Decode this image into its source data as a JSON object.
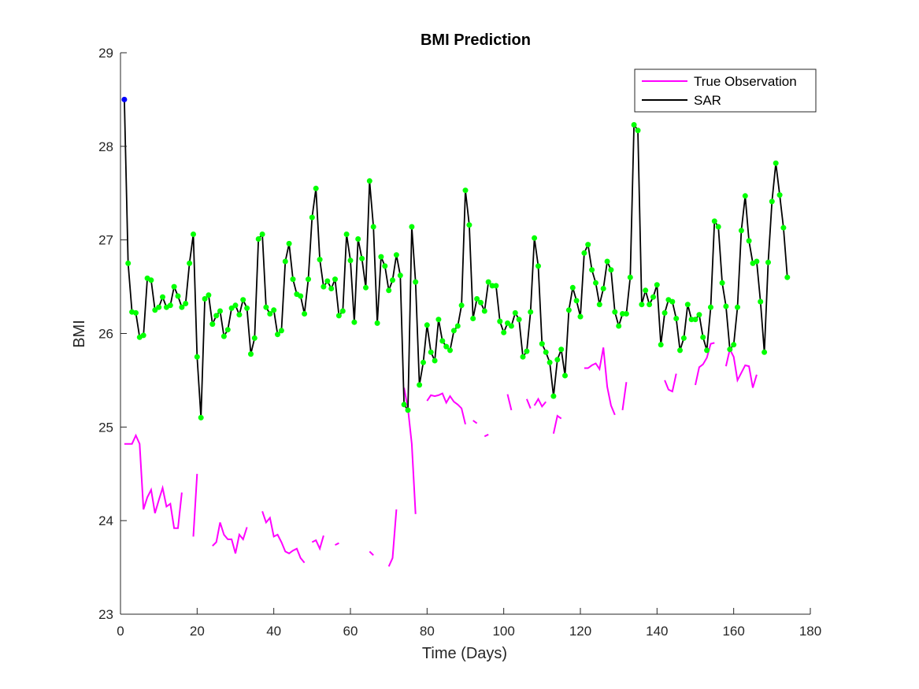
{
  "chart_data": {
    "type": "line",
    "title": "BMI Prediction",
    "xlabel": "Time (Days)",
    "ylabel": "BMI",
    "xlim": [
      0,
      180
    ],
    "ylim": [
      23,
      29
    ],
    "xticks": [
      "0",
      "20",
      "40",
      "60",
      "80",
      "100",
      "120",
      "140",
      "160",
      "180"
    ],
    "yticks": [
      "23",
      "24",
      "25",
      "26",
      "27",
      "28",
      "29"
    ],
    "legend_position": "top-right",
    "grid": false,
    "colors": {
      "true_observation": "#ff00ff",
      "sar": "#000000",
      "sar_markers": "#00ff00",
      "first_marker": "#0000ff"
    },
    "series": [
      {
        "name": "True Observation",
        "segments": [
          [
            [
              1,
              24.82
            ],
            [
              2,
              24.82
            ],
            [
              3,
              24.82
            ],
            [
              4,
              24.91
            ],
            [
              5,
              24.82
            ],
            [
              6,
              24.12
            ],
            [
              7,
              24.25
            ],
            [
              8,
              24.33
            ],
            [
              9,
              24.08
            ],
            [
              10,
              24.22
            ],
            [
              11,
              24.35
            ],
            [
              12,
              24.15
            ],
            [
              13,
              24.18
            ],
            [
              14,
              23.92
            ],
            [
              15,
              23.92
            ],
            [
              16,
              24.3
            ]
          ],
          [
            [
              19,
              23.83
            ],
            [
              20,
              24.5
            ]
          ],
          [
            [
              24,
              23.73
            ],
            [
              25,
              23.77
            ],
            [
              26,
              23.98
            ],
            [
              27,
              23.85
            ],
            [
              28,
              23.8
            ],
            [
              29,
              23.8
            ],
            [
              30,
              23.65
            ],
            [
              31,
              23.85
            ],
            [
              32,
              23.8
            ],
            [
              33,
              23.93
            ]
          ],
          [
            [
              37,
              24.1
            ],
            [
              38,
              23.98
            ],
            [
              39,
              24.03
            ],
            [
              40,
              23.83
            ],
            [
              41,
              23.85
            ],
            [
              42,
              23.77
            ],
            [
              43,
              23.67
            ],
            [
              44,
              23.65
            ],
            [
              45,
              23.68
            ],
            [
              46,
              23.7
            ],
            [
              47,
              23.6
            ],
            [
              48,
              23.55
            ]
          ],
          [
            [
              50,
              23.77
            ],
            [
              51,
              23.79
            ],
            [
              52,
              23.7
            ],
            [
              53,
              23.84
            ]
          ],
          [
            [
              56,
              23.74
            ],
            [
              57,
              23.76
            ]
          ],
          [
            [
              65,
              23.67
            ],
            [
              66,
              23.63
            ]
          ],
          [
            [
              70,
              23.51
            ],
            [
              71,
              23.6
            ],
            [
              72,
              24.12
            ]
          ],
          [
            [
              74,
              25.42
            ],
            [
              75,
              25.2
            ],
            [
              76,
              24.82
            ],
            [
              77,
              24.07
            ]
          ],
          [
            [
              80,
              25.28
            ],
            [
              81,
              25.34
            ],
            [
              82,
              25.33
            ],
            [
              83,
              25.34
            ],
            [
              84,
              25.36
            ],
            [
              85,
              25.26
            ],
            [
              86,
              25.33
            ],
            [
              87,
              25.27
            ],
            [
              88,
              25.24
            ],
            [
              89,
              25.2
            ],
            [
              90,
              25.03
            ]
          ],
          [
            [
              92,
              25.07
            ],
            [
              93,
              25.04
            ]
          ],
          [
            [
              95,
              24.9
            ],
            [
              96,
              24.92
            ]
          ],
          [
            [
              101,
              25.35
            ],
            [
              102,
              25.18
            ]
          ],
          [
            [
              106,
              25.3
            ],
            [
              107,
              25.2
            ]
          ],
          [
            [
              108,
              25.23
            ],
            [
              109,
              25.3
            ],
            [
              110,
              25.22
            ],
            [
              111,
              25.27
            ]
          ],
          [
            [
              113,
              24.93
            ],
            [
              114,
              25.12
            ],
            [
              115,
              25.09
            ]
          ],
          [
            [
              121,
              25.63
            ],
            [
              122,
              25.63
            ],
            [
              123,
              25.66
            ],
            [
              124,
              25.68
            ],
            [
              125,
              25.62
            ],
            [
              126,
              25.85
            ],
            [
              127,
              25.43
            ],
            [
              128,
              25.23
            ],
            [
              129,
              25.13
            ]
          ],
          [
            [
              131,
              25.18
            ],
            [
              132,
              25.48
            ]
          ],
          [
            [
              142,
              25.5
            ],
            [
              143,
              25.4
            ],
            [
              144,
              25.38
            ],
            [
              145,
              25.57
            ]
          ],
          [
            [
              150,
              25.45
            ],
            [
              151,
              25.64
            ],
            [
              152,
              25.67
            ],
            [
              153,
              25.74
            ],
            [
              154,
              25.89
            ],
            [
              155,
              25.9
            ]
          ],
          [
            [
              158,
              25.65
            ],
            [
              159,
              25.83
            ],
            [
              160,
              25.75
            ],
            [
              161,
              25.5
            ],
            [
              162,
              25.58
            ],
            [
              163,
              25.66
            ],
            [
              164,
              25.65
            ],
            [
              165,
              25.42
            ],
            [
              166,
              25.56
            ]
          ]
        ]
      },
      {
        "name": "SAR",
        "x": [
          1,
          2,
          3,
          4,
          5,
          6,
          7,
          8,
          9,
          10,
          11,
          12,
          13,
          14,
          15,
          16,
          17,
          18,
          19,
          20,
          21,
          22,
          23,
          24,
          25,
          26,
          27,
          28,
          29,
          30,
          31,
          32,
          33,
          34,
          35,
          36,
          37,
          38,
          39,
          40,
          41,
          42,
          43,
          44,
          45,
          46,
          47,
          48,
          49,
          50,
          51,
          52,
          53,
          54,
          55,
          56,
          57,
          58,
          59,
          60,
          61,
          62,
          63,
          64,
          65,
          66,
          67,
          68,
          69,
          70,
          71,
          72,
          73,
          74,
          75,
          76,
          77,
          78,
          79,
          80,
          81,
          82,
          83,
          84,
          85,
          86,
          87,
          88,
          89,
          90,
          91,
          92,
          93,
          94,
          95,
          96,
          97,
          98,
          99,
          100,
          101,
          102,
          103,
          104,
          105,
          106,
          107,
          108,
          109,
          110,
          111,
          112,
          113,
          114,
          115,
          116,
          117,
          118,
          119,
          120,
          121,
          122,
          123,
          124,
          125,
          126,
          127,
          128,
          129,
          130,
          131,
          132,
          133,
          134,
          135,
          136,
          137,
          138,
          139,
          140,
          141,
          142,
          143,
          144,
          145,
          146,
          147,
          148,
          149,
          150,
          151,
          152,
          153,
          154,
          155,
          156,
          157,
          158,
          159,
          160,
          161,
          162,
          163,
          164,
          165,
          166,
          167,
          168,
          169,
          170,
          171,
          172,
          173,
          174
        ],
        "values": [
          28.5,
          26.75,
          26.23,
          26.22,
          25.96,
          25.98,
          26.59,
          26.57,
          26.25,
          26.28,
          26.39,
          26.28,
          26.3,
          26.5,
          26.4,
          26.28,
          26.32,
          26.75,
          27.06,
          25.75,
          25.1,
          26.37,
          26.41,
          26.1,
          26.19,
          26.24,
          25.97,
          26.04,
          26.27,
          26.3,
          26.2,
          26.36,
          26.27,
          25.78,
          25.95,
          27.01,
          27.06,
          26.28,
          26.21,
          26.25,
          25.99,
          26.03,
          26.77,
          26.96,
          26.58,
          26.42,
          26.4,
          26.21,
          26.58,
          27.24,
          27.55,
          26.79,
          26.5,
          26.56,
          26.48,
          26.58,
          26.19,
          26.24,
          27.06,
          26.78,
          26.12,
          27.01,
          26.8,
          26.49,
          27.63,
          27.14,
          26.11,
          26.82,
          26.72,
          26.46,
          26.57,
          26.84,
          26.62,
          25.24,
          25.18,
          27.14,
          26.55,
          25.45,
          25.69,
          26.09,
          25.8,
          25.71,
          26.15,
          25.92,
          25.86,
          25.82,
          26.03,
          26.08,
          26.3,
          27.53,
          27.16,
          26.16,
          26.37,
          26.33,
          26.24,
          26.55,
          26.51,
          26.51,
          26.13,
          26.01,
          26.11,
          26.08,
          26.22,
          26.15,
          25.75,
          25.81,
          26.23,
          27.02,
          26.72,
          25.89,
          25.8,
          25.69,
          25.33,
          25.72,
          25.83,
          25.55,
          26.25,
          26.49,
          26.35,
          26.18,
          26.86,
          26.95,
          26.68,
          26.54,
          26.31,
          26.48,
          26.77,
          26.68,
          26.23,
          26.08,
          26.21,
          26.21,
          26.6,
          28.23,
          28.17,
          26.31,
          26.46,
          26.31,
          26.39,
          26.52,
          25.88,
          26.22,
          26.36,
          26.34,
          26.16,
          25.82,
          25.95,
          26.31,
          26.15,
          26.15,
          26.2,
          25.96,
          25.82,
          26.28,
          27.2,
          27.14,
          26.54,
          26.29,
          25.83,
          25.88,
          26.28,
          27.1,
          27.47,
          26.99,
          26.75,
          26.77,
          26.34,
          25.8,
          26.76,
          27.41,
          27.82,
          27.48,
          27.13,
          26.6
        ]
      }
    ]
  },
  "legend": {
    "true_observation_label": "True Observation",
    "sar_label": "SAR"
  }
}
